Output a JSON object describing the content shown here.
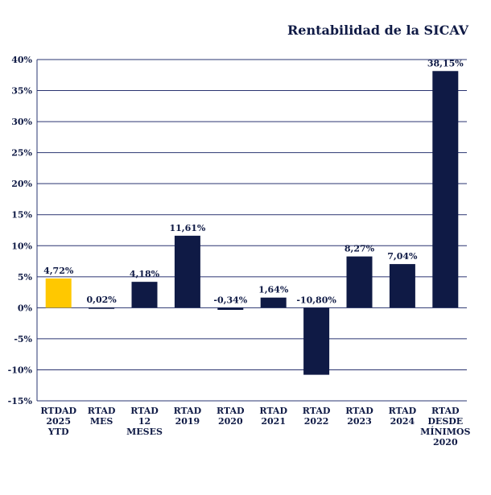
{
  "chart_data": {
    "type": "bar",
    "title": "Rentabilidad de la SICAV",
    "categories": [
      [
        "RTDAD",
        "2025",
        "YTD"
      ],
      [
        "RTAD",
        "MES"
      ],
      [
        "RTAD",
        "12",
        "MESES"
      ],
      [
        "RTAD",
        "2019"
      ],
      [
        "RTAD",
        "2020"
      ],
      [
        "RTAD",
        "2021"
      ],
      [
        "RTAD",
        "2022"
      ],
      [
        "RTAD",
        "2023"
      ],
      [
        "RTAD",
        "2024"
      ],
      [
        "RTAD",
        "DESDE",
        "MÍNIMOS",
        "2020"
      ]
    ],
    "values": [
      4.72,
      0.02,
      4.18,
      11.61,
      -0.34,
      1.64,
      -10.8,
      8.27,
      7.04,
      38.15
    ],
    "value_labels": [
      "4,72%",
      "0,02%",
      "4,18%",
      "11,61%",
      "-0,34%",
      "1,64%",
      "-10,80%",
      "8,27%",
      "7,04%",
      "38,15%"
    ],
    "yticks": [
      -15,
      -10,
      -5,
      0,
      5,
      10,
      15,
      20,
      25,
      30,
      35,
      40
    ],
    "ytick_labels": [
      "-15%",
      "-10%",
      "-5%",
      "0%",
      "5%",
      "10%",
      "15%",
      "20%",
      "25%",
      "30%",
      "35%",
      "40%"
    ],
    "ylim": [
      -15,
      40
    ],
    "grid": true,
    "colors": {
      "highlight": "#ffc800",
      "bar": "#0f1a45",
      "grid": "#2a3470",
      "text": "#0f1a45"
    },
    "highlight_index": 0
  }
}
